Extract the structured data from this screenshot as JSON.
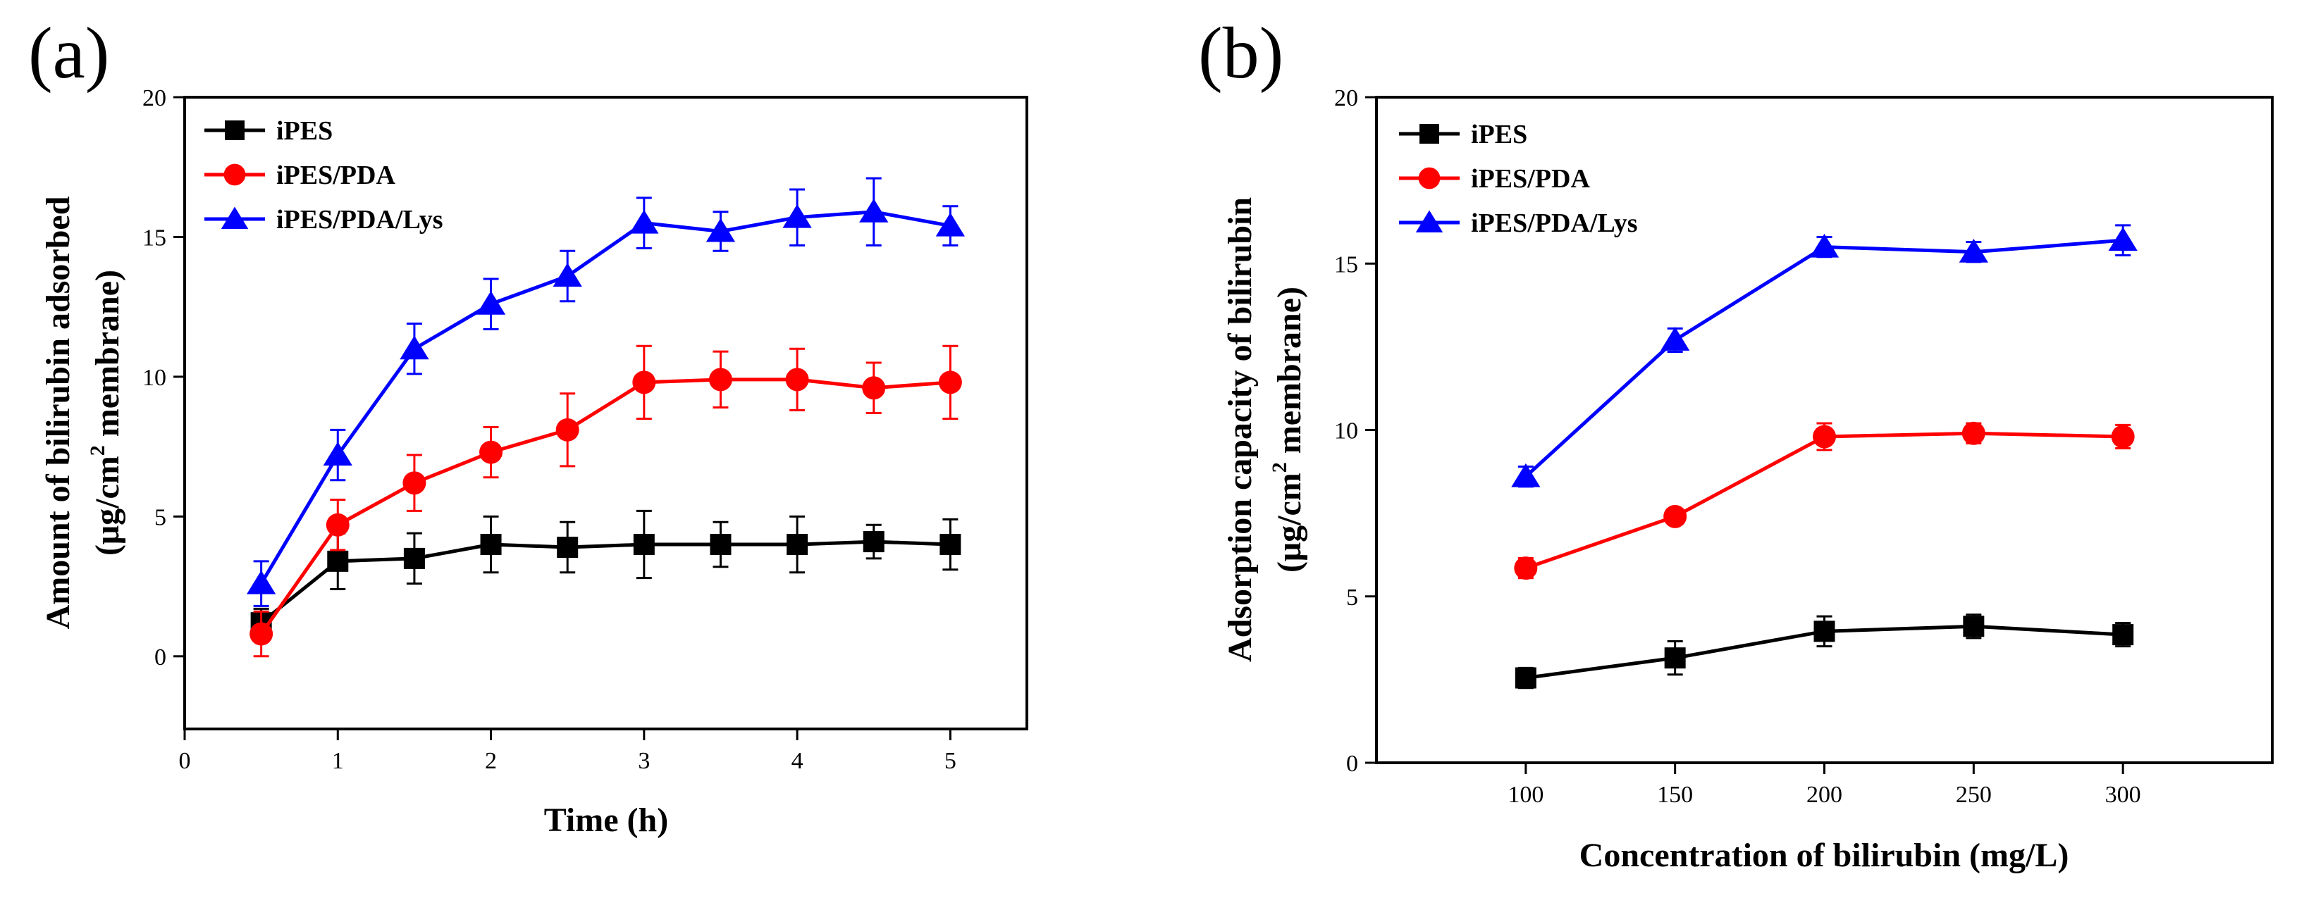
{
  "chart_data": [
    {
      "type": "line",
      "panel_label": "(a)",
      "title": "",
      "xlabel": "Time (h)",
      "ylabel_line1": "Amount of bilirubin adsorbed",
      "ylabel_line2_pre": "(μg/cm",
      "ylabel_line2_sup": "2",
      "ylabel_line2_post": " membrane)",
      "xlim": [
        0,
        5.5
      ],
      "ylim": [
        -2.6,
        20
      ],
      "xticks": [
        0,
        1,
        2,
        3,
        4,
        5
      ],
      "yticks": [
        0,
        5,
        10,
        15,
        20
      ],
      "legend_position": "top-left",
      "grid": false,
      "x": [
        0.5,
        1,
        1.5,
        2,
        2.5,
        3,
        3.5,
        4,
        4.5,
        5
      ],
      "series": [
        {
          "name": "iPES",
          "color": "#000000",
          "marker": "square",
          "values": [
            1.2,
            3.4,
            3.5,
            4.0,
            3.9,
            4.0,
            4.0,
            4.0,
            4.1,
            4.0
          ],
          "errors": [
            0.5,
            1.0,
            0.9,
            1.0,
            0.9,
            1.2,
            0.8,
            1.0,
            0.6,
            0.9
          ]
        },
        {
          "name": "iPES/PDA",
          "color": "#ff0000",
          "marker": "circle",
          "values": [
            0.8,
            4.7,
            6.2,
            7.3,
            8.1,
            9.8,
            9.9,
            9.9,
            9.6,
            9.8
          ],
          "errors": [
            0.8,
            0.9,
            1.0,
            0.9,
            1.3,
            1.3,
            1.0,
            1.1,
            0.9,
            1.3
          ]
        },
        {
          "name": "iPES/PDA/Lys",
          "color": "#0000ff",
          "marker": "triangle",
          "values": [
            2.6,
            7.2,
            11.0,
            12.6,
            13.6,
            15.5,
            15.2,
            15.7,
            15.9,
            15.4
          ],
          "errors": [
            0.8,
            0.9,
            0.9,
            0.9,
            0.9,
            0.9,
            0.7,
            1.0,
            1.2,
            0.7
          ]
        }
      ]
    },
    {
      "type": "line",
      "panel_label": "(b)",
      "title": "",
      "xlabel": "Concentration of bilirubin (mg/L)",
      "ylabel_line1": "Adsorption capacity of  bilirubin",
      "ylabel_line2_pre": "(μg/cm",
      "ylabel_line2_sup": "2",
      "ylabel_line2_post": " membrane)",
      "xlim": [
        50,
        350
      ],
      "ylim": [
        0,
        20
      ],
      "xticks": [
        100,
        150,
        200,
        250,
        300
      ],
      "yticks": [
        0,
        5,
        10,
        15,
        20
      ],
      "legend_position": "top-left",
      "grid": false,
      "x": [
        100,
        150,
        200,
        250,
        300
      ],
      "series": [
        {
          "name": "iPES",
          "color": "#000000",
          "marker": "square",
          "values": [
            2.55,
            3.15,
            3.95,
            4.1,
            3.85
          ],
          "errors": [
            0.3,
            0.5,
            0.45,
            0.35,
            0.35
          ]
        },
        {
          "name": "iPES/PDA",
          "color": "#ff0000",
          "marker": "circle",
          "values": [
            5.85,
            7.4,
            9.8,
            9.9,
            9.8
          ],
          "errors": [
            0.3,
            0.2,
            0.4,
            0.3,
            0.35
          ]
        },
        {
          "name": "iPES/PDA/Lys",
          "color": "#0000ff",
          "marker": "triangle",
          "values": [
            8.6,
            12.7,
            15.5,
            15.35,
            15.7
          ],
          "errors": [
            0.3,
            0.35,
            0.3,
            0.3,
            0.45
          ]
        }
      ]
    }
  ]
}
